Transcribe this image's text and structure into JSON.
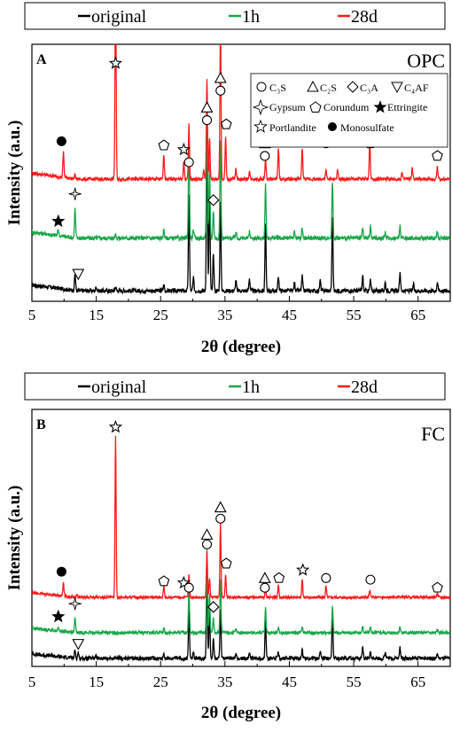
{
  "colors": {
    "original": "#000000",
    "h1": "#1aa64a",
    "d28": "#ff1a1a",
    "axis": "#000000"
  },
  "legend": [
    {
      "name": "original",
      "color": "#000000"
    },
    {
      "name": "1h",
      "color": "#1aa64a"
    },
    {
      "name": "28d",
      "color": "#ff1a1a"
    }
  ],
  "key": [
    {
      "symbol": "circle",
      "text": "C₃S"
    },
    {
      "symbol": "triangle-up",
      "text": "C₂S"
    },
    {
      "symbol": "diamond",
      "text": "C₃A"
    },
    {
      "symbol": "triangle-down",
      "text": "C₄AF"
    },
    {
      "symbol": "star4",
      "text": "Gypsum"
    },
    {
      "symbol": "pentagon",
      "text": "Corundum"
    },
    {
      "symbol": "star-filled",
      "text": "Ettringite"
    },
    {
      "symbol": "star-open",
      "text": "Portlandite"
    },
    {
      "symbol": "circle-filled",
      "text": "Monosulfate"
    }
  ],
  "chart_data": [
    {
      "type": "line",
      "panel_label": "A",
      "title": "OPC",
      "xlabel": "2θ (degree)",
      "ylabel": "Intensity (a.u.)",
      "xlim": [
        5,
        70
      ],
      "xticks": [
        5,
        15,
        25,
        35,
        45,
        55,
        65
      ],
      "grid": false,
      "series": [
        {
          "name": "original",
          "baseline": 0.05,
          "noise": 0.01,
          "peaks": [
            [
              11.7,
              0.08
            ],
            [
              15.0,
              0.02
            ],
            [
              18.0,
              0.02
            ],
            [
              25.5,
              0.03
            ],
            [
              29.4,
              0.45
            ],
            [
              30.1,
              0.06
            ],
            [
              32.2,
              0.82
            ],
            [
              32.6,
              0.5
            ],
            [
              33.2,
              0.18
            ],
            [
              34.3,
              0.42
            ],
            [
              36.7,
              0.05
            ],
            [
              38.8,
              0.06
            ],
            [
              41.3,
              0.32
            ],
            [
              43.3,
              0.07
            ],
            [
              45.8,
              0.04
            ],
            [
              47.0,
              0.07
            ],
            [
              49.8,
              0.05
            ],
            [
              51.7,
              0.35
            ],
            [
              56.4,
              0.07
            ],
            [
              57.6,
              0.05
            ],
            [
              59.9,
              0.04
            ],
            [
              62.2,
              0.09
            ],
            [
              64.3,
              0.03
            ],
            [
              68.0,
              0.04
            ]
          ]
        },
        {
          "name": "1h",
          "baseline": 0.3,
          "noise": 0.01,
          "peaks": [
            [
              9.1,
              0.03
            ],
            [
              11.7,
              0.14
            ],
            [
              18.0,
              0.02
            ],
            [
              25.5,
              0.04
            ],
            [
              29.4,
              0.49
            ],
            [
              30.1,
              0.04
            ],
            [
              32.2,
              0.67
            ],
            [
              32.6,
              0.36
            ],
            [
              33.2,
              0.13
            ],
            [
              34.3,
              0.47
            ],
            [
              36.7,
              0.03
            ],
            [
              38.8,
              0.03
            ],
            [
              41.3,
              0.25
            ],
            [
              45.8,
              0.03
            ],
            [
              47.0,
              0.05
            ],
            [
              51.7,
              0.27
            ],
            [
              56.4,
              0.05
            ],
            [
              57.6,
              0.06
            ],
            [
              59.9,
              0.03
            ],
            [
              62.2,
              0.06
            ],
            [
              68.0,
              0.03
            ]
          ]
        },
        {
          "name": "28d",
          "baseline": 0.58,
          "noise": 0.008,
          "peaks": [
            [
              9.9,
              0.12
            ],
            [
              11.7,
              0.02
            ],
            [
              18.0,
              1.0
            ],
            [
              25.5,
              0.12
            ],
            [
              28.6,
              0.08
            ],
            [
              29.4,
              0.26
            ],
            [
              31.7,
              0.04
            ],
            [
              32.2,
              0.48
            ],
            [
              32.6,
              0.2
            ],
            [
              34.3,
              0.74
            ],
            [
              35.1,
              0.2
            ],
            [
              36.7,
              0.05
            ],
            [
              38.8,
              0.04
            ],
            [
              41.3,
              0.1
            ],
            [
              43.3,
              0.15
            ],
            [
              47.0,
              0.15
            ],
            [
              50.7,
              0.04
            ],
            [
              52.5,
              0.04
            ],
            [
              57.5,
              0.18
            ],
            [
              62.5,
              0.03
            ],
            [
              64.1,
              0.05
            ],
            [
              68.0,
              0.06
            ]
          ]
        }
      ],
      "annotations": [
        {
          "symbol": "star-open",
          "x": 18.0,
          "y": 1.13
        },
        {
          "symbol": "circle-filled",
          "x": 9.6,
          "y": 0.76
        },
        {
          "symbol": "pentagon",
          "x": 25.5,
          "y": 0.74
        },
        {
          "symbol": "star-open",
          "x": 28.6,
          "y": 0.72
        },
        {
          "symbol": "circle",
          "x": 29.4,
          "y": 0.66
        },
        {
          "symbol": "triangle-up",
          "x": 32.2,
          "y": 0.92
        },
        {
          "symbol": "circle",
          "x": 32.2,
          "y": 0.86
        },
        {
          "symbol": "triangle-up",
          "x": 34.3,
          "y": 1.06
        },
        {
          "symbol": "circle",
          "x": 34.3,
          "y": 1.0
        },
        {
          "symbol": "pentagon",
          "x": 35.2,
          "y": 0.84
        },
        {
          "symbol": "triangle-up",
          "x": 41.2,
          "y": 0.75
        },
        {
          "symbol": "circle",
          "x": 41.2,
          "y": 0.69
        },
        {
          "symbol": "pentagon",
          "x": 43.4,
          "y": 0.82
        },
        {
          "symbol": "star-open",
          "x": 47.1,
          "y": 0.8
        },
        {
          "symbol": "circle",
          "x": 50.7,
          "y": 0.75
        },
        {
          "symbol": "pentagon",
          "x": 57.6,
          "y": 0.75
        },
        {
          "symbol": "pentagon",
          "x": 68.0,
          "y": 0.69
        },
        {
          "symbol": "star-filled",
          "x": 9.1,
          "y": 0.38
        },
        {
          "symbol": "star4",
          "x": 11.7,
          "y": 0.51
        },
        {
          "symbol": "diamond",
          "x": 33.2,
          "y": 0.48
        },
        {
          "symbol": "triangle-down",
          "x": 12.2,
          "y": 0.13
        }
      ]
    },
    {
      "type": "line",
      "panel_label": "B",
      "title": "FC",
      "xlabel": "2θ (degree)",
      "ylabel": "Intensity (a.u.)",
      "xlim": [
        5,
        70
      ],
      "xticks": [
        5,
        15,
        25,
        35,
        45,
        55,
        65
      ],
      "grid": false,
      "series": [
        {
          "name": "original",
          "baseline": 0.05,
          "noise": 0.012,
          "peaks": [
            [
              11.7,
              0.05
            ],
            [
              12.2,
              0.04
            ],
            [
              14.9,
              0.02
            ],
            [
              25.5,
              0.03
            ],
            [
              29.4,
              0.3
            ],
            [
              30.1,
              0.04
            ],
            [
              32.2,
              0.55
            ],
            [
              32.6,
              0.32
            ],
            [
              33.2,
              0.12
            ],
            [
              34.3,
              0.3
            ],
            [
              36.7,
              0.03
            ],
            [
              38.8,
              0.04
            ],
            [
              41.3,
              0.24
            ],
            [
              43.3,
              0.04
            ],
            [
              47.0,
              0.06
            ],
            [
              49.8,
              0.04
            ],
            [
              51.7,
              0.27
            ],
            [
              56.4,
              0.07
            ],
            [
              57.6,
              0.04
            ],
            [
              59.9,
              0.04
            ],
            [
              62.2,
              0.07
            ],
            [
              68.0,
              0.03
            ]
          ]
        },
        {
          "name": "1h",
          "baseline": 0.21,
          "noise": 0.01,
          "peaks": [
            [
              9.1,
              0.02
            ],
            [
              11.7,
              0.09
            ],
            [
              25.5,
              0.03
            ],
            [
              29.4,
              0.3
            ],
            [
              32.2,
              0.52
            ],
            [
              32.6,
              0.24
            ],
            [
              33.2,
              0.09
            ],
            [
              34.3,
              0.34
            ],
            [
              36.7,
              0.02
            ],
            [
              41.3,
              0.15
            ],
            [
              43.3,
              0.03
            ],
            [
              47.0,
              0.04
            ],
            [
              51.7,
              0.16
            ],
            [
              56.4,
              0.04
            ],
            [
              57.6,
              0.04
            ],
            [
              62.2,
              0.04
            ],
            [
              68.0,
              0.02
            ]
          ]
        },
        {
          "name": "28d",
          "baseline": 0.43,
          "noise": 0.008,
          "peaks": [
            [
              9.9,
              0.08
            ],
            [
              12.0,
              0.02
            ],
            [
              18.0,
              1.0
            ],
            [
              25.5,
              0.07
            ],
            [
              29.4,
              0.14
            ],
            [
              32.2,
              0.29
            ],
            [
              32.6,
              0.12
            ],
            [
              34.3,
              0.46
            ],
            [
              35.1,
              0.14
            ],
            [
              41.3,
              0.06
            ],
            [
              43.3,
              0.08
            ],
            [
              47.0,
              0.11
            ],
            [
              50.7,
              0.07
            ],
            [
              57.5,
              0.04
            ],
            [
              68.0,
              0.03
            ]
          ]
        }
      ],
      "annotations": [
        {
          "symbol": "star-open",
          "x": 18.0,
          "y": 1.49
        },
        {
          "symbol": "circle-filled",
          "x": 9.6,
          "y": 0.59
        },
        {
          "symbol": "pentagon",
          "x": 25.5,
          "y": 0.53
        },
        {
          "symbol": "star-open",
          "x": 28.6,
          "y": 0.52
        },
        {
          "symbol": "circle",
          "x": 29.4,
          "y": 0.49
        },
        {
          "symbol": "triangle-up",
          "x": 32.2,
          "y": 0.82
        },
        {
          "symbol": "circle",
          "x": 32.2,
          "y": 0.76
        },
        {
          "symbol": "triangle-up",
          "x": 34.3,
          "y": 0.99
        },
        {
          "symbol": "circle",
          "x": 34.3,
          "y": 0.92
        },
        {
          "symbol": "pentagon",
          "x": 35.2,
          "y": 0.64
        },
        {
          "symbol": "triangle-up",
          "x": 41.2,
          "y": 0.55
        },
        {
          "symbol": "circle",
          "x": 41.2,
          "y": 0.49
        },
        {
          "symbol": "pentagon",
          "x": 43.4,
          "y": 0.55
        },
        {
          "symbol": "star-open",
          "x": 47.1,
          "y": 0.6
        },
        {
          "symbol": "circle",
          "x": 50.7,
          "y": 0.55
        },
        {
          "symbol": "circle",
          "x": 57.6,
          "y": 0.54
        },
        {
          "symbol": "pentagon",
          "x": 68.0,
          "y": 0.49
        },
        {
          "symbol": "star-filled",
          "x": 9.1,
          "y": 0.31
        },
        {
          "symbol": "star4",
          "x": 11.7,
          "y": 0.39
        },
        {
          "symbol": "diamond",
          "x": 33.2,
          "y": 0.37
        },
        {
          "symbol": "triangle-down",
          "x": 12.2,
          "y": 0.14
        }
      ]
    }
  ]
}
